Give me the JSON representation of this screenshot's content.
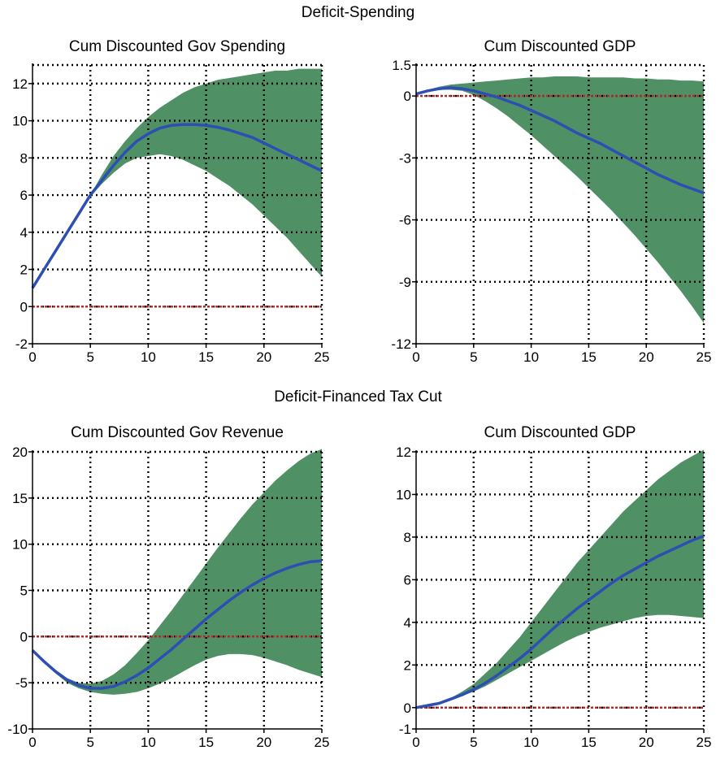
{
  "sections": [
    {
      "title": "Deficit-Spending"
    },
    {
      "title": "Deficit-Financed Tax Cut"
    }
  ],
  "colors": {
    "band": "#4f9165",
    "median": "#2d4fb4",
    "zero_line": "#b32a2a",
    "grid": "#000000"
  },
  "chart_data": [
    {
      "type": "area",
      "title": "Cum Discounted Gov Spending",
      "x": [
        0,
        1,
        2,
        3,
        4,
        5,
        6,
        7,
        8,
        9,
        10,
        11,
        12,
        13,
        14,
        15,
        16,
        17,
        18,
        19,
        20,
        21,
        22,
        23,
        24,
        25
      ],
      "xlim": [
        0,
        25
      ],
      "ylim": [
        -2,
        13
      ],
      "xticks": [
        0,
        5,
        10,
        15,
        20,
        25
      ],
      "yticks": [
        -2,
        0,
        2,
        4,
        6,
        8,
        10,
        12
      ],
      "grid": true,
      "zero_line": 0,
      "series": [
        {
          "role": "upper",
          "values": [
            1.0,
            2.0,
            3.0,
            4.0,
            5.0,
            6.0,
            7.1,
            8.1,
            8.9,
            9.6,
            10.2,
            10.7,
            11.1,
            11.5,
            11.8,
            12.0,
            12.2,
            12.3,
            12.4,
            12.5,
            12.6,
            12.7,
            12.7,
            12.8,
            12.8,
            12.8
          ]
        },
        {
          "role": "median",
          "values": [
            1.0,
            2.0,
            3.0,
            4.0,
            5.0,
            6.0,
            6.8,
            7.6,
            8.3,
            8.9,
            9.3,
            9.6,
            9.75,
            9.8,
            9.8,
            9.75,
            9.65,
            9.5,
            9.3,
            9.1,
            8.8,
            8.5,
            8.2,
            7.9,
            7.6,
            7.3
          ]
        },
        {
          "role": "lower",
          "values": [
            1.0,
            2.0,
            3.0,
            4.0,
            5.0,
            5.9,
            6.6,
            7.2,
            7.7,
            8.0,
            8.1,
            8.2,
            8.1,
            7.9,
            7.6,
            7.3,
            6.9,
            6.5,
            6.0,
            5.5,
            4.9,
            4.3,
            3.7,
            3.0,
            2.3,
            1.6
          ]
        }
      ]
    },
    {
      "type": "area",
      "title": "Cum Discounted GDP",
      "x": [
        0,
        1,
        2,
        3,
        4,
        5,
        6,
        7,
        8,
        9,
        10,
        11,
        12,
        13,
        14,
        15,
        16,
        17,
        18,
        19,
        20,
        21,
        22,
        23,
        24,
        25
      ],
      "xlim": [
        0,
        25
      ],
      "ylim": [
        -12,
        1.5
      ],
      "xticks": [
        0,
        5,
        10,
        15,
        20,
        25
      ],
      "yticks": [
        -12,
        -9,
        -6,
        -3,
        0,
        1.5
      ],
      "grid": true,
      "zero_line": 0,
      "series": [
        {
          "role": "upper",
          "values": [
            0.1,
            0.3,
            0.45,
            0.55,
            0.6,
            0.65,
            0.7,
            0.75,
            0.8,
            0.85,
            0.9,
            0.9,
            0.95,
            0.95,
            0.95,
            0.9,
            0.9,
            0.9,
            0.9,
            0.85,
            0.85,
            0.8,
            0.8,
            0.75,
            0.75,
            0.7
          ]
        },
        {
          "role": "median",
          "values": [
            0.1,
            0.25,
            0.35,
            0.4,
            0.35,
            0.25,
            0.1,
            -0.05,
            -0.25,
            -0.45,
            -0.7,
            -0.95,
            -1.2,
            -1.5,
            -1.8,
            -2.05,
            -2.3,
            -2.6,
            -2.9,
            -3.2,
            -3.5,
            -3.8,
            -4.05,
            -4.3,
            -4.5,
            -4.7
          ]
        },
        {
          "role": "lower",
          "values": [
            0.1,
            0.2,
            0.3,
            0.3,
            0.25,
            0.05,
            -0.25,
            -0.6,
            -1.0,
            -1.45,
            -1.9,
            -2.4,
            -2.9,
            -3.4,
            -3.9,
            -4.45,
            -5.0,
            -5.55,
            -6.15,
            -6.75,
            -7.4,
            -8.05,
            -8.75,
            -9.45,
            -10.2,
            -11.0
          ]
        }
      ]
    },
    {
      "type": "area",
      "title": "Cum Discounted Gov Revenue",
      "x": [
        0,
        1,
        2,
        3,
        4,
        5,
        6,
        7,
        8,
        9,
        10,
        11,
        12,
        13,
        14,
        15,
        16,
        17,
        18,
        19,
        20,
        21,
        22,
        23,
        24,
        25
      ],
      "xlim": [
        0,
        25
      ],
      "ylim": [
        -10,
        20
      ],
      "xticks": [
        0,
        5,
        10,
        15,
        20,
        25
      ],
      "yticks": [
        -10,
        -5,
        0,
        5,
        10,
        15,
        20
      ],
      "grid": true,
      "zero_line": 0,
      "series": [
        {
          "role": "upper",
          "values": [
            -1.5,
            -2.6,
            -3.6,
            -4.5,
            -5.0,
            -5.1,
            -4.8,
            -4.1,
            -3.1,
            -1.8,
            -0.4,
            1.2,
            2.8,
            4.5,
            6.2,
            7.9,
            9.6,
            11.2,
            12.8,
            14.3,
            15.6,
            16.9,
            18.0,
            19.0,
            19.8,
            20.3
          ]
        },
        {
          "role": "median",
          "values": [
            -1.5,
            -2.7,
            -3.8,
            -4.7,
            -5.3,
            -5.6,
            -5.6,
            -5.4,
            -4.9,
            -4.2,
            -3.4,
            -2.4,
            -1.4,
            -0.3,
            0.8,
            1.9,
            2.9,
            3.9,
            4.8,
            5.6,
            6.3,
            6.9,
            7.4,
            7.8,
            8.1,
            8.2
          ]
        },
        {
          "role": "lower",
          "values": [
            -1.5,
            -2.8,
            -4.0,
            -5.0,
            -5.6,
            -6.0,
            -6.2,
            -6.3,
            -6.2,
            -6.0,
            -5.6,
            -5.1,
            -4.5,
            -3.8,
            -3.1,
            -2.5,
            -2.1,
            -1.9,
            -1.9,
            -2.0,
            -2.3,
            -2.7,
            -3.1,
            -3.6,
            -4.0,
            -4.4
          ]
        }
      ]
    },
    {
      "type": "area",
      "title": "Cum Discounted GDP",
      "x": [
        0,
        1,
        2,
        3,
        4,
        5,
        6,
        7,
        8,
        9,
        10,
        11,
        12,
        13,
        14,
        15,
        16,
        17,
        18,
        19,
        20,
        21,
        22,
        23,
        24,
        25
      ],
      "xlim": [
        0,
        25
      ],
      "ylim": [
        -1,
        12
      ],
      "xticks": [
        0,
        5,
        10,
        15,
        20,
        25
      ],
      "yticks": [
        -1,
        0,
        2,
        4,
        6,
        8,
        10,
        12
      ],
      "grid": true,
      "zero_line": 0,
      "series": [
        {
          "role": "upper",
          "values": [
            0.0,
            0.1,
            0.25,
            0.45,
            0.75,
            1.1,
            1.6,
            2.1,
            2.7,
            3.3,
            4.0,
            4.7,
            5.4,
            6.1,
            6.8,
            7.4,
            8.0,
            8.6,
            9.2,
            9.7,
            10.2,
            10.7,
            11.1,
            11.5,
            11.8,
            12.1
          ]
        },
        {
          "role": "median",
          "values": [
            0.0,
            0.1,
            0.2,
            0.4,
            0.6,
            0.85,
            1.15,
            1.5,
            1.9,
            2.3,
            2.75,
            3.25,
            3.75,
            4.2,
            4.65,
            5.05,
            5.45,
            5.85,
            6.2,
            6.5,
            6.8,
            7.1,
            7.35,
            7.6,
            7.85,
            8.05
          ]
        },
        {
          "role": "lower",
          "values": [
            0.0,
            0.1,
            0.2,
            0.35,
            0.55,
            0.75,
            1.0,
            1.3,
            1.6,
            1.9,
            2.2,
            2.5,
            2.8,
            3.1,
            3.35,
            3.55,
            3.75,
            3.9,
            4.05,
            4.2,
            4.3,
            4.35,
            4.35,
            4.3,
            4.25,
            4.2
          ]
        }
      ]
    }
  ]
}
